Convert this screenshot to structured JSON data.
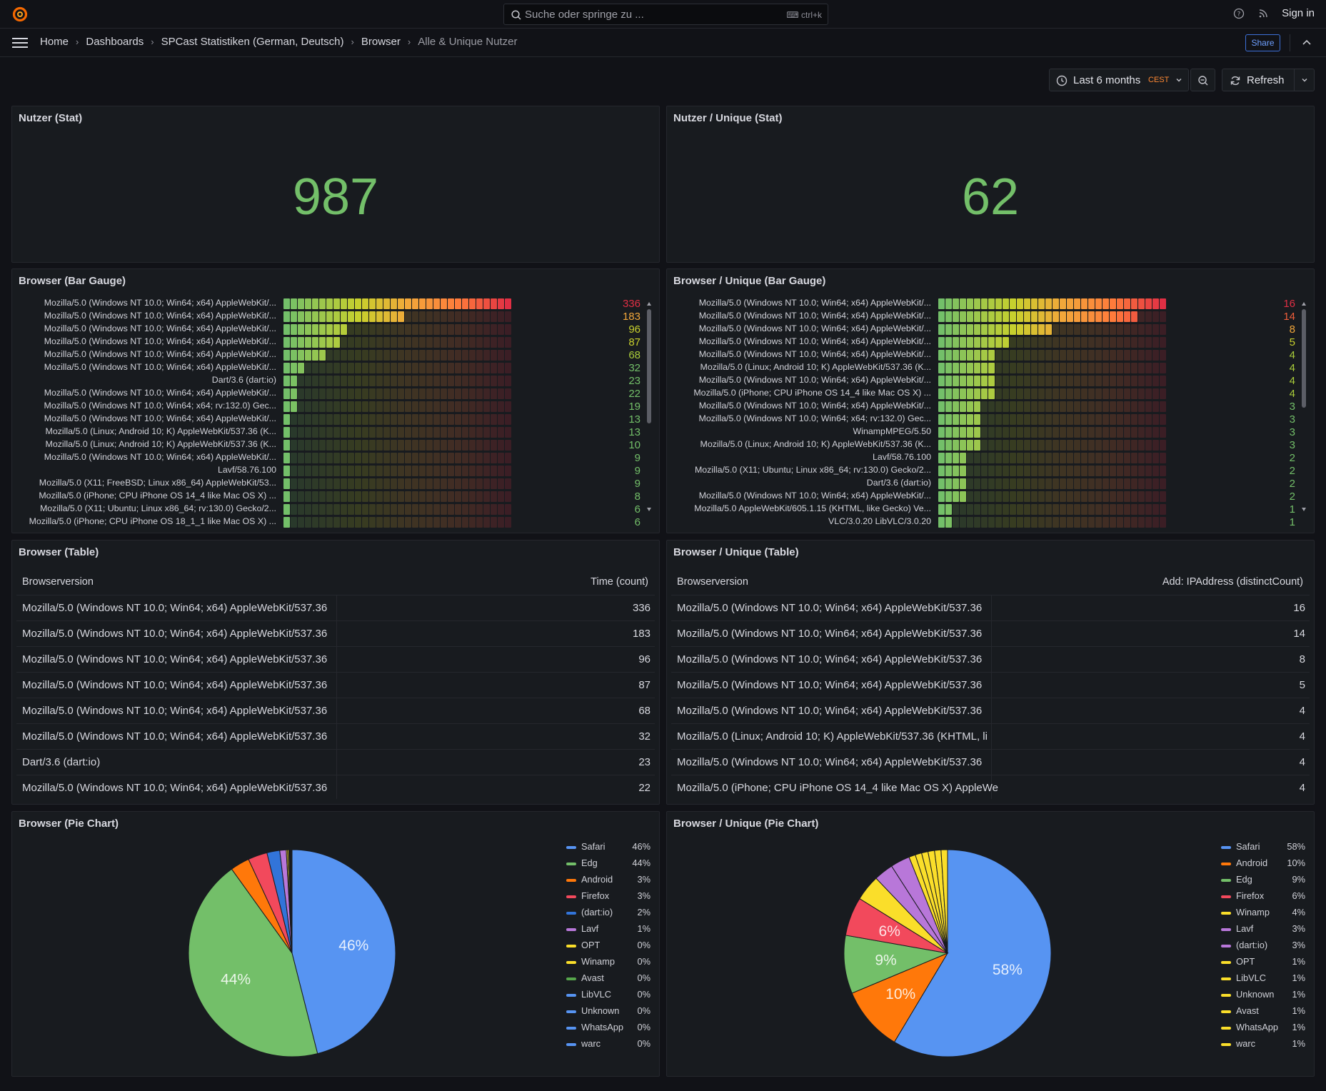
{
  "topbar": {
    "search_placeholder": "Suche oder springe zu ...",
    "search_shortcut": "ctrl+k",
    "sign_in": "Sign in"
  },
  "breadcrumb": [
    "Home",
    "Dashboards",
    "SPCast Statistiken (German, Deutsch)",
    "Browser",
    "Alle & Unique Nutzer"
  ],
  "share_label": "Share",
  "time_range": {
    "label": "Last 6 months",
    "tz": "CEST"
  },
  "refresh_label": "Refresh",
  "panels": {
    "stat_all": {
      "title": "Nutzer (Stat)",
      "value": "987"
    },
    "stat_unique": {
      "title": "Nutzer / Unique (Stat)",
      "value": "62"
    },
    "gauge_all": {
      "title": "Browser (Bar Gauge)",
      "rows": [
        {
          "label": "Mozilla/5.0 (Windows NT 10.0; Win64; x64) AppleWebKit/...",
          "value": 336,
          "shown": "336",
          "color": "#e02f44"
        },
        {
          "label": "Mozilla/5.0 (Windows NT 10.0; Win64; x64) AppleWebKit/...",
          "value": 183,
          "shown": "183",
          "color": "#f2a73a"
        },
        {
          "label": "Mozilla/5.0 (Windows NT 10.0; Win64; x64) AppleWebKit/...",
          "value": 96,
          "shown": "96",
          "color": "#c8d02d"
        },
        {
          "label": "Mozilla/5.0 (Windows NT 10.0; Win64; x64) AppleWebKit/...",
          "value": 87,
          "shown": "87",
          "color": "#c8d02d"
        },
        {
          "label": "Mozilla/5.0 (Windows NT 10.0; Win64; x64) AppleWebKit/...",
          "value": 68,
          "shown": "68",
          "color": "#a9cc3a"
        },
        {
          "label": "Mozilla/5.0 (Windows NT 10.0; Win64; x64) AppleWebKit/...",
          "value": 32,
          "shown": "32",
          "color": "#73bf69"
        },
        {
          "label": "Dart/3.6 (dart:io)",
          "value": 23,
          "shown": "23",
          "color": "#73bf69"
        },
        {
          "label": "Mozilla/5.0 (Windows NT 10.0; Win64; x64) AppleWebKit/...",
          "value": 22,
          "shown": "22",
          "color": "#73bf69"
        },
        {
          "label": "Mozilla/5.0 (Windows NT 10.0; Win64; x64; rv:132.0) Gec...",
          "value": 19,
          "shown": "19",
          "color": "#73bf69"
        },
        {
          "label": "Mozilla/5.0 (Windows NT 10.0; Win64; x64) AppleWebKit/...",
          "value": 13,
          "shown": "13",
          "color": "#73bf69"
        },
        {
          "label": "Mozilla/5.0 (Linux; Android 10; K) AppleWebKit/537.36 (K...",
          "value": 13,
          "shown": "13",
          "color": "#73bf69"
        },
        {
          "label": "Mozilla/5.0 (Linux; Android 10; K) AppleWebKit/537.36 (K...",
          "value": 10,
          "shown": "10",
          "color": "#73bf69"
        },
        {
          "label": "Mozilla/5.0 (Windows NT 10.0; Win64; x64) AppleWebKit/...",
          "value": 9,
          "shown": "9",
          "color": "#73bf69"
        },
        {
          "label": "Lavf/58.76.100",
          "value": 9,
          "shown": "9",
          "color": "#73bf69"
        },
        {
          "label": "Mozilla/5.0 (X11; FreeBSD; Linux x86_64) AppleWebKit/53...",
          "value": 9,
          "shown": "9",
          "color": "#73bf69"
        },
        {
          "label": "Mozilla/5.0 (iPhone; CPU iPhone OS 14_4 like Mac OS X) ...",
          "value": 8,
          "shown": "8",
          "color": "#73bf69"
        },
        {
          "label": "Mozilla/5.0 (X11; Ubuntu; Linux x86_64; rv:130.0) Gecko/2...",
          "value": 6,
          "shown": "6",
          "color": "#73bf69"
        },
        {
          "label": "Mozilla/5.0 (iPhone; CPU iPhone OS 18_1_1 like Mac OS X) ...",
          "value": 6,
          "shown": "6",
          "color": "#73bf69"
        }
      ]
    },
    "gauge_unique": {
      "title": "Browser / Unique (Bar Gauge)",
      "rows": [
        {
          "label": "Mozilla/5.0 (Windows NT 10.0; Win64; x64) AppleWebKit/...",
          "value": 16,
          "shown": "16",
          "color": "#e02f44"
        },
        {
          "label": "Mozilla/5.0 (Windows NT 10.0; Win64; x64) AppleWebKit/...",
          "value": 14,
          "shown": "14",
          "color": "#f05e3a"
        },
        {
          "label": "Mozilla/5.0 (Windows NT 10.0; Win64; x64) AppleWebKit/...",
          "value": 8,
          "shown": "8",
          "color": "#f2a73a"
        },
        {
          "label": "Mozilla/5.0 (Windows NT 10.0; Win64; x64) AppleWebKit/...",
          "value": 5,
          "shown": "5",
          "color": "#c8d02d"
        },
        {
          "label": "Mozilla/5.0 (Windows NT 10.0; Win64; x64) AppleWebKit/...",
          "value": 4,
          "shown": "4",
          "color": "#a9cc3a"
        },
        {
          "label": "Mozilla/5.0 (Linux; Android 10; K) AppleWebKit/537.36 (K...",
          "value": 4,
          "shown": "4",
          "color": "#a9cc3a"
        },
        {
          "label": "Mozilla/5.0 (Windows NT 10.0; Win64; x64) AppleWebKit/...",
          "value": 4,
          "shown": "4",
          "color": "#a9cc3a"
        },
        {
          "label": "Mozilla/5.0 (iPhone; CPU iPhone OS 14_4 like Mac OS X) ...",
          "value": 4,
          "shown": "4",
          "color": "#a9cc3a"
        },
        {
          "label": "Mozilla/5.0 (Windows NT 10.0; Win64; x64) AppleWebKit/...",
          "value": 3,
          "shown": "3",
          "color": "#73bf69"
        },
        {
          "label": "Mozilla/5.0 (Windows NT 10.0; Win64; x64; rv:132.0) Gec...",
          "value": 3,
          "shown": "3",
          "color": "#73bf69"
        },
        {
          "label": "WinampMPEG/5.50",
          "value": 3,
          "shown": "3",
          "color": "#73bf69"
        },
        {
          "label": "Mozilla/5.0 (Linux; Android 10; K) AppleWebKit/537.36 (K...",
          "value": 3,
          "shown": "3",
          "color": "#73bf69"
        },
        {
          "label": "Lavf/58.76.100",
          "value": 2,
          "shown": "2",
          "color": "#73bf69"
        },
        {
          "label": "Mozilla/5.0 (X11; Ubuntu; Linux x86_64; rv:130.0) Gecko/2...",
          "value": 2,
          "shown": "2",
          "color": "#73bf69"
        },
        {
          "label": "Dart/3.6 (dart:io)",
          "value": 2,
          "shown": "2",
          "color": "#73bf69"
        },
        {
          "label": "Mozilla/5.0 (Windows NT 10.0; Win64; x64) AppleWebKit/...",
          "value": 2,
          "shown": "2",
          "color": "#73bf69"
        },
        {
          "label": "Mozilla/5.0 AppleWebKit/605.1.15 (KHTML, like Gecko) Ve...",
          "value": 1,
          "shown": "1",
          "color": "#73bf69"
        },
        {
          "label": "VLC/3.0.20 LibVLC/3.0.20",
          "value": 1,
          "shown": "1",
          "color": "#73bf69"
        }
      ]
    },
    "table_all": {
      "title": "Browser (Table)",
      "columns": [
        "Browserversion",
        "Time (count)"
      ],
      "rows": [
        [
          "Mozilla/5.0 (Windows NT 10.0; Win64; x64) AppleWebKit/537.36",
          "336"
        ],
        [
          "Mozilla/5.0 (Windows NT 10.0; Win64; x64) AppleWebKit/537.36",
          "183"
        ],
        [
          "Mozilla/5.0 (Windows NT 10.0; Win64; x64) AppleWebKit/537.36",
          "96"
        ],
        [
          "Mozilla/5.0 (Windows NT 10.0; Win64; x64) AppleWebKit/537.36",
          "87"
        ],
        [
          "Mozilla/5.0 (Windows NT 10.0; Win64; x64) AppleWebKit/537.36",
          "68"
        ],
        [
          "Mozilla/5.0 (Windows NT 10.0; Win64; x64) AppleWebKit/537.36",
          "32"
        ],
        [
          "Dart/3.6 (dart:io)",
          "23"
        ],
        [
          "Mozilla/5.0 (Windows NT 10.0; Win64; x64) AppleWebKit/537.36",
          "22"
        ]
      ]
    },
    "table_unique": {
      "title": "Browser / Unique (Table)",
      "columns": [
        "Browserversion",
        "Add: IPAddress (distinctCount)"
      ],
      "rows": [
        [
          "Mozilla/5.0 (Windows NT 10.0; Win64; x64) AppleWebKit/537.36",
          "16"
        ],
        [
          "Mozilla/5.0 (Windows NT 10.0; Win64; x64) AppleWebKit/537.36",
          "14"
        ],
        [
          "Mozilla/5.0 (Windows NT 10.0; Win64; x64) AppleWebKit/537.36",
          "8"
        ],
        [
          "Mozilla/5.0 (Windows NT 10.0; Win64; x64) AppleWebKit/537.36",
          "5"
        ],
        [
          "Mozilla/5.0 (Windows NT 10.0; Win64; x64) AppleWebKit/537.36",
          "4"
        ],
        [
          "Mozilla/5.0 (Linux; Android 10; K) AppleWebKit/537.36 (KHTML, li",
          "4"
        ],
        [
          "Mozilla/5.0 (Windows NT 10.0; Win64; x64) AppleWebKit/537.36",
          "4"
        ],
        [
          "Mozilla/5.0 (iPhone; CPU iPhone OS 14_4 like Mac OS X) AppleWe",
          "4"
        ]
      ]
    },
    "pie_all": {
      "title": "Browser (Pie Chart)"
    },
    "pie_unique": {
      "title": "Browser / Unique (Pie Chart)"
    }
  },
  "chart_data": [
    {
      "type": "pie",
      "title": "Browser (Pie Chart)",
      "slices": [
        {
          "name": "Safari",
          "value": 46,
          "label": "46%",
          "color": "#5794f2"
        },
        {
          "name": "Edg",
          "value": 44,
          "label": "44%",
          "color": "#73bf69"
        },
        {
          "name": "Android",
          "value": 3,
          "label": "3%",
          "color": "#ff780a"
        },
        {
          "name": "Firefox",
          "value": 3,
          "label": "3%",
          "color": "#f2495c"
        },
        {
          "name": "(dart:io)",
          "value": 2,
          "label": "2%",
          "color": "#3274d9"
        },
        {
          "name": "Lavf",
          "value": 1,
          "label": "1%",
          "color": "#b877d9"
        },
        {
          "name": "OPT",
          "value": 0.2,
          "label": "0%",
          "color": "#fade2a"
        },
        {
          "name": "Winamp",
          "value": 0.2,
          "label": "0%",
          "color": "#fade2a"
        },
        {
          "name": "Avast",
          "value": 0.1,
          "label": "0%",
          "color": "#56a64b"
        },
        {
          "name": "LibVLC",
          "value": 0.1,
          "label": "0%",
          "color": "#5794f2"
        },
        {
          "name": "Unknown",
          "value": 0.1,
          "label": "0%",
          "color": "#5794f2"
        },
        {
          "name": "WhatsApp",
          "value": 0.1,
          "label": "0%",
          "color": "#5794f2"
        },
        {
          "name": "warc",
          "value": 0.1,
          "label": "0%",
          "color": "#5794f2"
        }
      ]
    },
    {
      "type": "pie",
      "title": "Browser / Unique (Pie Chart)",
      "slices": [
        {
          "name": "Safari",
          "value": 58,
          "label": "58%",
          "color": "#5794f2"
        },
        {
          "name": "Android",
          "value": 10,
          "label": "10%",
          "color": "#ff780a"
        },
        {
          "name": "Edg",
          "value": 9,
          "label": "9%",
          "color": "#73bf69"
        },
        {
          "name": "Firefox",
          "value": 6,
          "label": "6%",
          "color": "#f2495c"
        },
        {
          "name": "Winamp",
          "value": 4,
          "label": "4%",
          "color": "#fade2a"
        },
        {
          "name": "Lavf",
          "value": 3,
          "label": "3%",
          "color": "#b877d9"
        },
        {
          "name": "(dart:io)",
          "value": 3,
          "label": "3%",
          "color": "#b877d9"
        },
        {
          "name": "OPT",
          "value": 1,
          "label": "1%",
          "color": "#fade2a"
        },
        {
          "name": "LibVLC",
          "value": 1,
          "label": "1%",
          "color": "#fade2a"
        },
        {
          "name": "Unknown",
          "value": 1,
          "label": "1%",
          "color": "#fade2a"
        },
        {
          "name": "Avast",
          "value": 1,
          "label": "1%",
          "color": "#fade2a"
        },
        {
          "name": "WhatsApp",
          "value": 1,
          "label": "1%",
          "color": "#fade2a"
        },
        {
          "name": "warc",
          "value": 1,
          "label": "1%",
          "color": "#fade2a"
        }
      ]
    }
  ]
}
